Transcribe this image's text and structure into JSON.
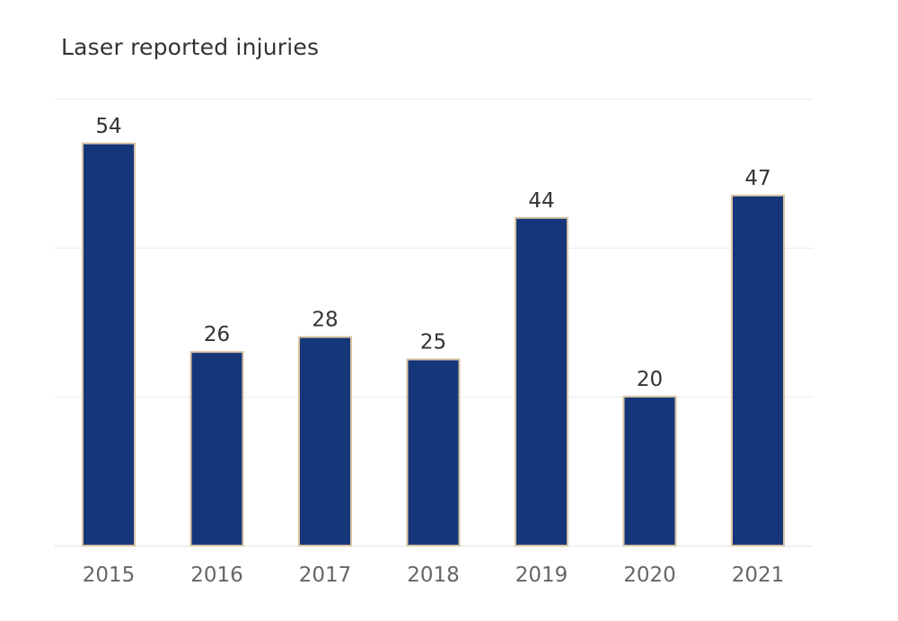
{
  "colors": {
    "bar_fill": "#15377a",
    "bar_border": "#d7c3a4",
    "gridline": "#ececec"
  },
  "chart_data": {
    "type": "bar",
    "title": "Laser reported injuries",
    "categories": [
      "2015",
      "2016",
      "2017",
      "2018",
      "2019",
      "2020",
      "2021"
    ],
    "values": [
      54,
      26,
      28,
      25,
      44,
      20,
      47
    ],
    "xlabel": "",
    "ylabel": "",
    "ylim": [
      0,
      60
    ],
    "gridlines": [
      20,
      40,
      60
    ],
    "grid": true,
    "legend": "none"
  }
}
